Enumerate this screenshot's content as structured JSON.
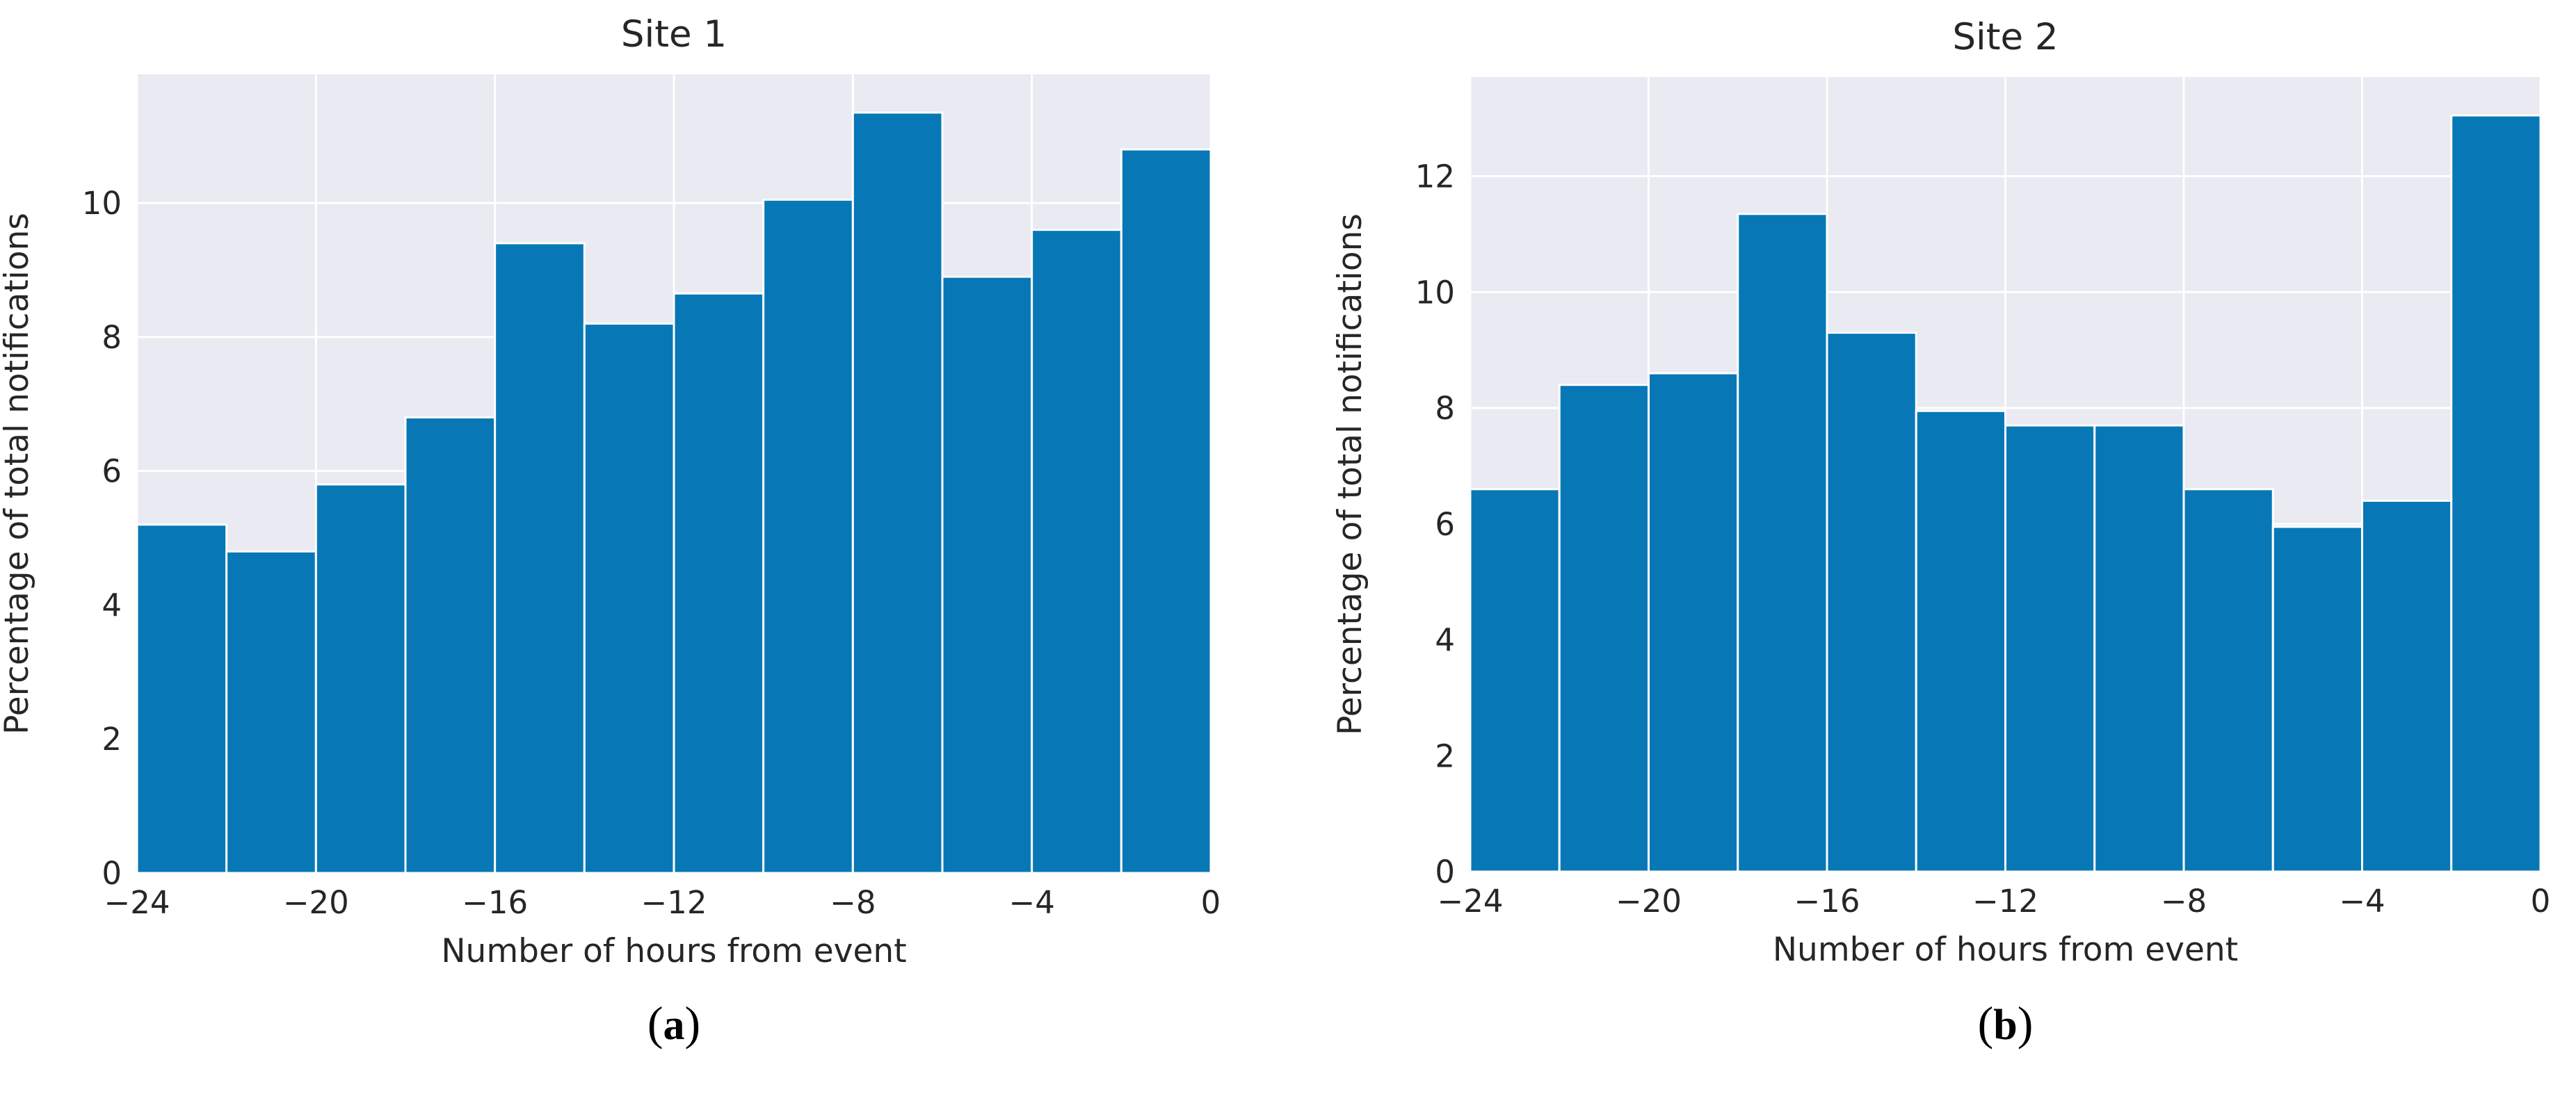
{
  "figure": {
    "background": "#ffffff",
    "panel_background": "#e9eaf2",
    "grid_color": "#ffffff",
    "bar_color": "#0778b5",
    "bar_edge_color": "#ffffff",
    "text_color": "#262626",
    "grid": true,
    "legend": null
  },
  "chart_data": [
    {
      "type": "bar",
      "title": "Site 1",
      "caption": {
        "open": "(",
        "letter": "a",
        "close": ")"
      },
      "xlabel": "Number of hours from event",
      "ylabel": "Percentage of total notifications",
      "bin_start": -24,
      "bin_width": 2,
      "values": [
        5.2,
        4.8,
        5.8,
        6.8,
        9.4,
        8.2,
        8.65,
        10.05,
        11.35,
        8.9,
        9.6,
        10.8
      ],
      "xticks": [
        -24,
        -20,
        -16,
        -12,
        -8,
        -4,
        0
      ],
      "yticks": [
        0,
        2,
        4,
        6,
        8,
        10
      ],
      "xlim": [
        -24,
        0
      ],
      "ylim": [
        0,
        11.92
      ],
      "grid": true,
      "legend_position": null
    },
    {
      "type": "bar",
      "title": "Site 2",
      "caption": {
        "open": "(",
        "letter": "b",
        "close": ")"
      },
      "xlabel": "Number of hours from event",
      "ylabel": "Percentage of total notifications",
      "bin_start": -24,
      "bin_width": 2,
      "values": [
        6.6,
        8.4,
        8.6,
        11.35,
        9.3,
        7.95,
        7.7,
        7.7,
        6.6,
        5.95,
        6.4,
        13.05
      ],
      "xticks": [
        -24,
        -20,
        -16,
        -12,
        -8,
        -4,
        0
      ],
      "yticks": [
        0,
        2,
        4,
        6,
        8,
        10,
        12
      ],
      "xlim": [
        -24,
        0
      ],
      "ylim": [
        0,
        13.71
      ],
      "grid": true,
      "legend_position": null
    }
  ]
}
